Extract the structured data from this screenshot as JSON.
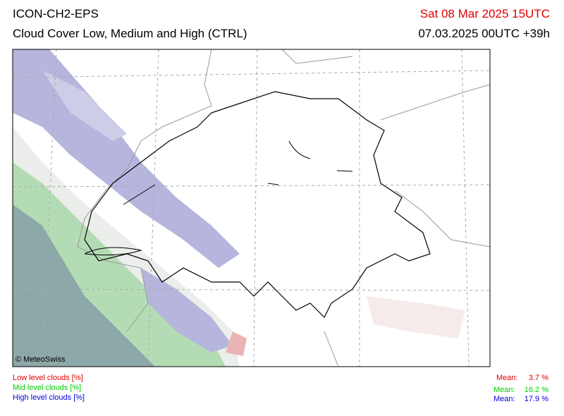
{
  "header": {
    "model": "ICON-CH2-EPS",
    "product": "Cloud Cover Low, Medium and High (CTRL)",
    "valid_time": "Sat 08 Mar 2025 15UTC",
    "run": "07.03.2025 00UTC +39h"
  },
  "map": {
    "credit": "© MeteoSwiss"
  },
  "legend": [
    {
      "label": "Low level clouds [%]",
      "mean_label": "Mean:",
      "mean": "3.7 %"
    },
    {
      "label": "Mid level clouds [%]",
      "mean_label": "Mean:",
      "mean": "16.2 %"
    },
    {
      "label": "High level clouds [%]",
      "mean_label": "Mean:",
      "mean": "17.9 %"
    }
  ]
}
